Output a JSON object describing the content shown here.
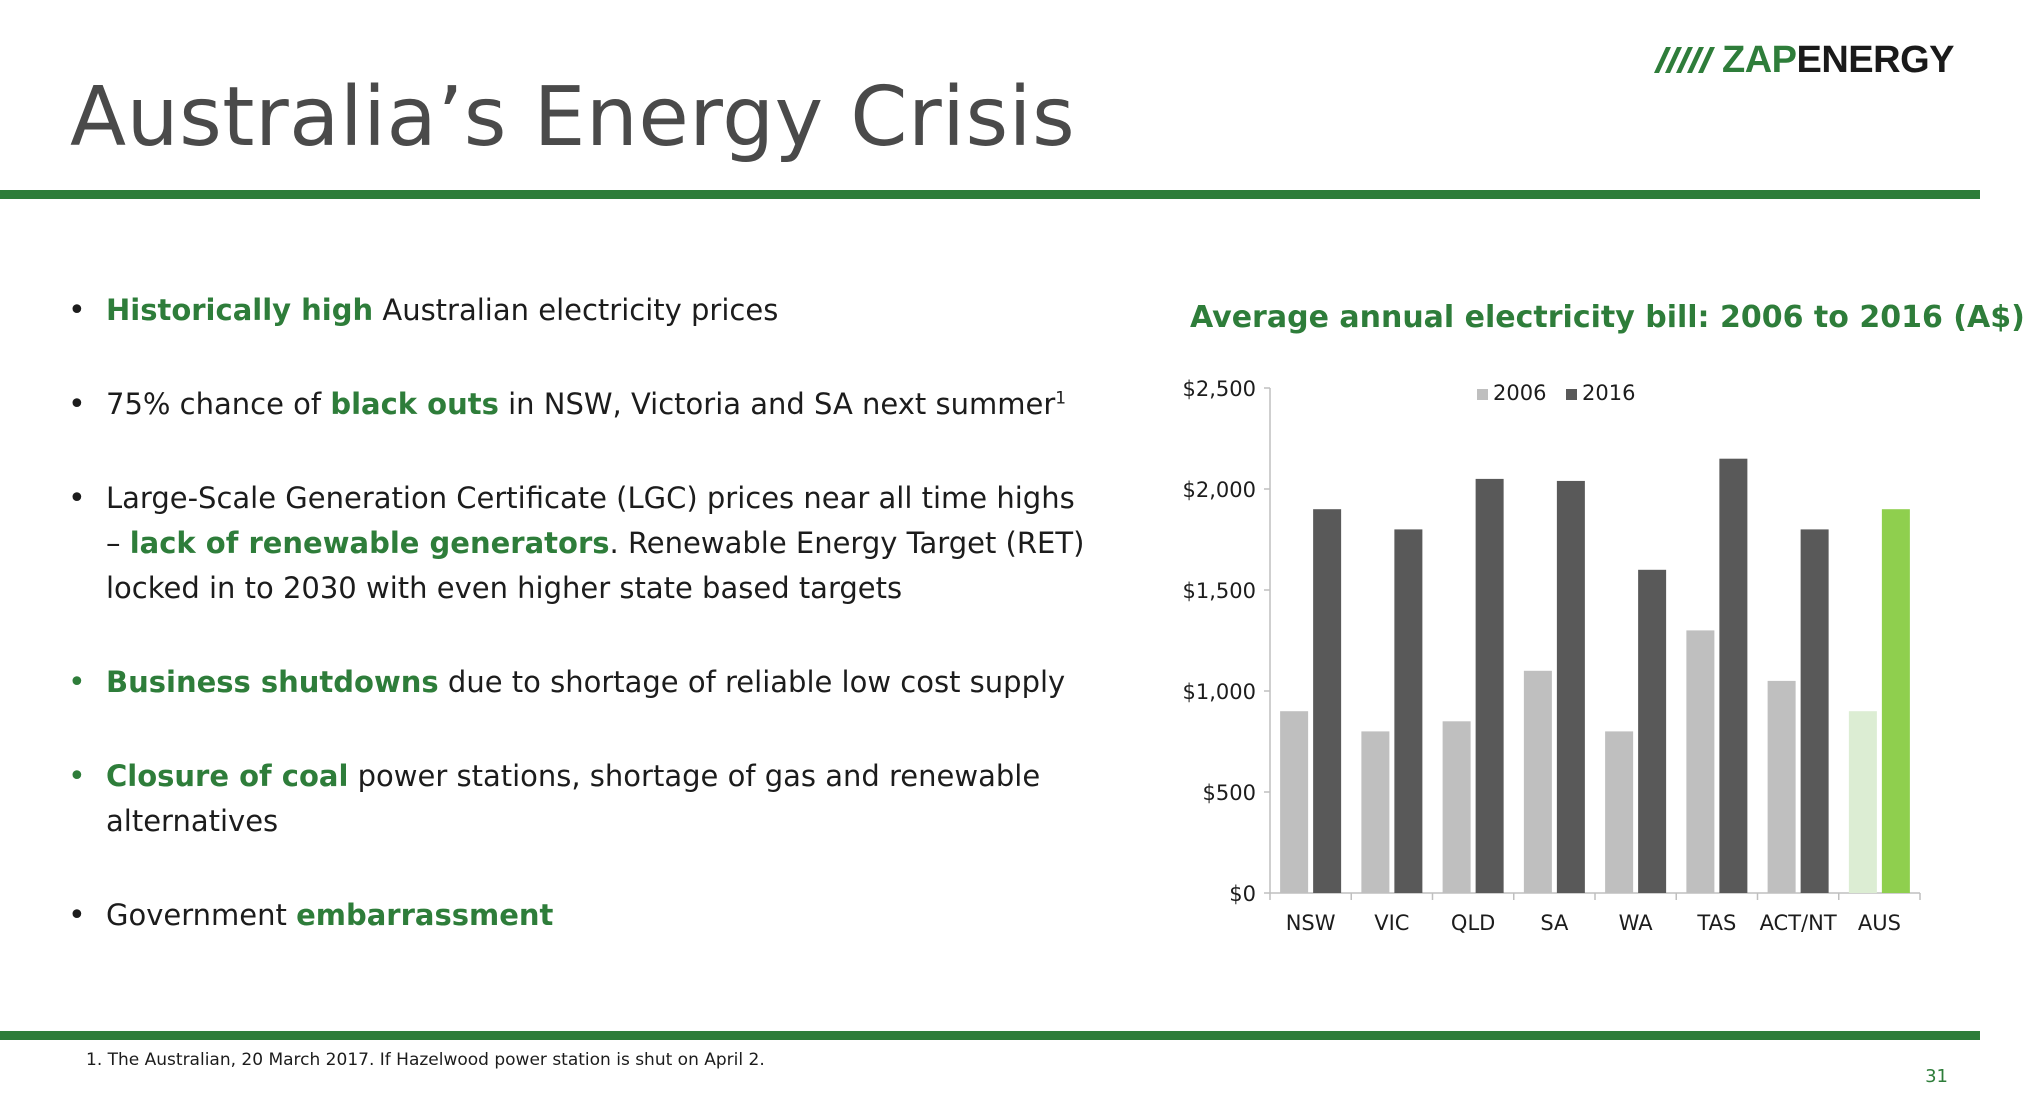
{
  "slide": {
    "title": "Australia’s Energy Crisis",
    "logo": {
      "zap": "ZAP",
      "energy": "ENERGY"
    },
    "page_number": "31",
    "footnote": "1.  The Australian, 20 March 2017. If Hazelwood power station is shut on April 2."
  },
  "bullets": [
    {
      "parts": [
        {
          "text": "Historically high",
          "hl": true
        },
        {
          "text": " Australian electricity prices"
        }
      ]
    },
    {
      "parts": [
        {
          "text": "75% chance of "
        },
        {
          "text": "black outs",
          "hl": true
        },
        {
          "text": " in NSW, Victoria and SA next summer"
        },
        {
          "text": "1",
          "sup": true
        }
      ]
    },
    {
      "parts": [
        {
          "text": "Large-Scale Generation Certificate (LGC) prices near all time highs – "
        },
        {
          "text": "lack of renewable generators",
          "hl": true
        },
        {
          "text": ". Renewable Energy Target (RET) locked in to 2030 with even higher state based targets"
        }
      ]
    },
    {
      "green_bullet": true,
      "parts": [
        {
          "text": "Business shutdowns",
          "hl": true
        },
        {
          "text": " due to shortage of reliable low cost supply"
        }
      ]
    },
    {
      "green_bullet": true,
      "parts": [
        {
          "text": "Closure of coal",
          "hl": true
        },
        {
          "text": " power stations, shortage of gas and renewable alternatives"
        }
      ]
    },
    {
      "parts": [
        {
          "text": "Government "
        },
        {
          "text": "embarrassment",
          "hl": true
        }
      ]
    }
  ],
  "colors": {
    "brand_green": "#2e7d3a",
    "bar_2006": "#bfbfbf",
    "bar_2016": "#595959",
    "aus_2006": "#dcedd3",
    "aus_2016": "#8fcf4e"
  },
  "chart_data": {
    "type": "bar",
    "title": "Average annual electricity bill: 2006 to 2016 (A$)",
    "categories": [
      "NSW",
      "VIC",
      "QLD",
      "SA",
      "WA",
      "TAS",
      "ACT/NT",
      "AUS"
    ],
    "series": [
      {
        "name": "2006",
        "values": [
          900,
          800,
          850,
          1100,
          800,
          1300,
          1050,
          900
        ]
      },
      {
        "name": "2016",
        "values": [
          1900,
          1800,
          2050,
          2040,
          1600,
          2150,
          1800,
          1900
        ]
      }
    ],
    "highlight_category": "AUS",
    "ylim": [
      0,
      2500
    ],
    "yticks": [
      0,
      500,
      1000,
      1500,
      2000,
      2500
    ],
    "ytick_labels": [
      "$0",
      "$500",
      "$1,000",
      "$1,500",
      "$2,000",
      "$2,500"
    ],
    "xlabel": "",
    "ylabel": "",
    "legend_position": "top-center"
  }
}
